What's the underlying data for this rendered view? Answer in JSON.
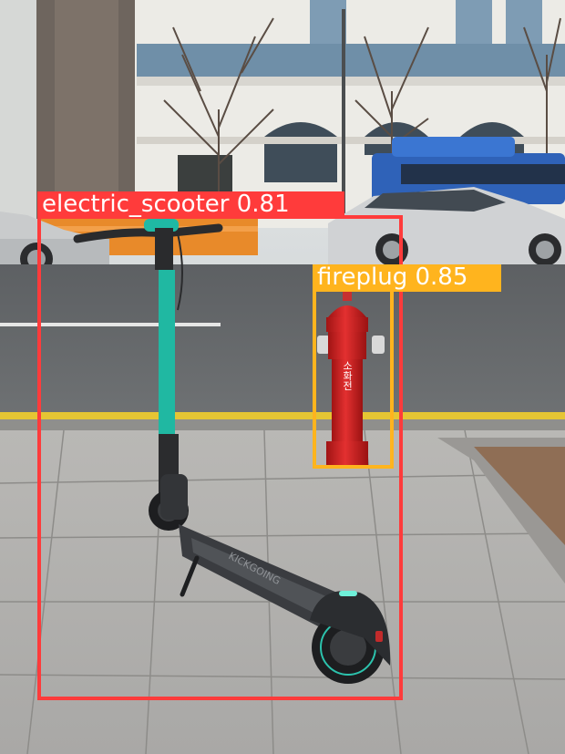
{
  "image": {
    "description_icon": "photo-scene-icon"
  },
  "detections": [
    {
      "class_name": "electric_scooter",
      "confidence": "0.81",
      "color": "#ff3b3b"
    },
    {
      "class_name": "fireplug",
      "confidence": "0.85",
      "color": "#ffb41e"
    }
  ],
  "scene_text": {
    "hydrant_sign": "소화전",
    "scooter_deck_brand": "KICKGOING"
  }
}
